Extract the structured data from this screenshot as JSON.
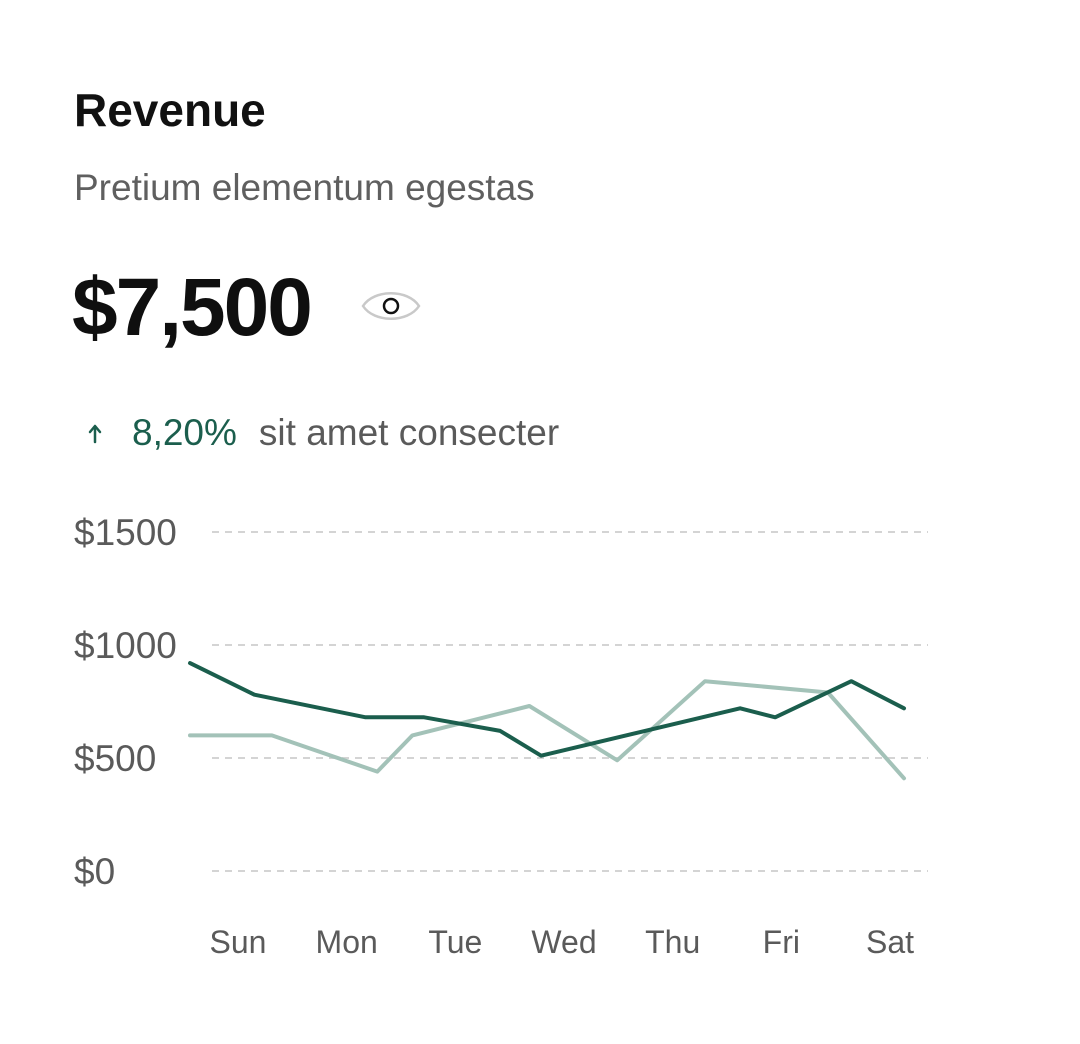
{
  "card": {
    "title": "Revenue",
    "subtitle": "Pretium elementum egestas",
    "amount": "$7,500",
    "visibility_icon": "eye-icon",
    "trend": {
      "direction_icon": "arrow-up-icon",
      "value": "8,20%",
      "text": "sit amet consecter",
      "color": "#1b5e4d"
    }
  },
  "colors": {
    "primary_line": "#1b5e4d",
    "secondary_line": "#a3c2b8",
    "grid": "#d4d4d4",
    "label": "#5a5a5a"
  },
  "chart_data": {
    "type": "line",
    "categories": [
      "Sun",
      "Mon",
      "Tue",
      "Wed",
      "Thu",
      "Fri",
      "Sat"
    ],
    "y_tick_labels": [
      "$1500",
      "$1000",
      "$500",
      "$0"
    ],
    "y_ticks": [
      1500,
      1000,
      500,
      0
    ],
    "ylim": [
      0,
      1500
    ],
    "grid": true,
    "series": [
      {
        "x": [
          0,
          0.55,
          1.5,
          2.0,
          2.65,
          3.0,
          4.7,
          5.0,
          5.65,
          6.1
        ],
        "values": [
          920,
          780,
          680,
          680,
          620,
          510,
          720,
          680,
          840,
          720
        ],
        "color": "#1b5e4d"
      },
      {
        "x": [
          0,
          0.7,
          1.6,
          1.9,
          2.9,
          3.65,
          4.4,
          5.45,
          6.1
        ],
        "values": [
          600,
          600,
          440,
          600,
          730,
          490,
          840,
          790,
          410
        ],
        "color": "#a3c2b8"
      }
    ]
  }
}
